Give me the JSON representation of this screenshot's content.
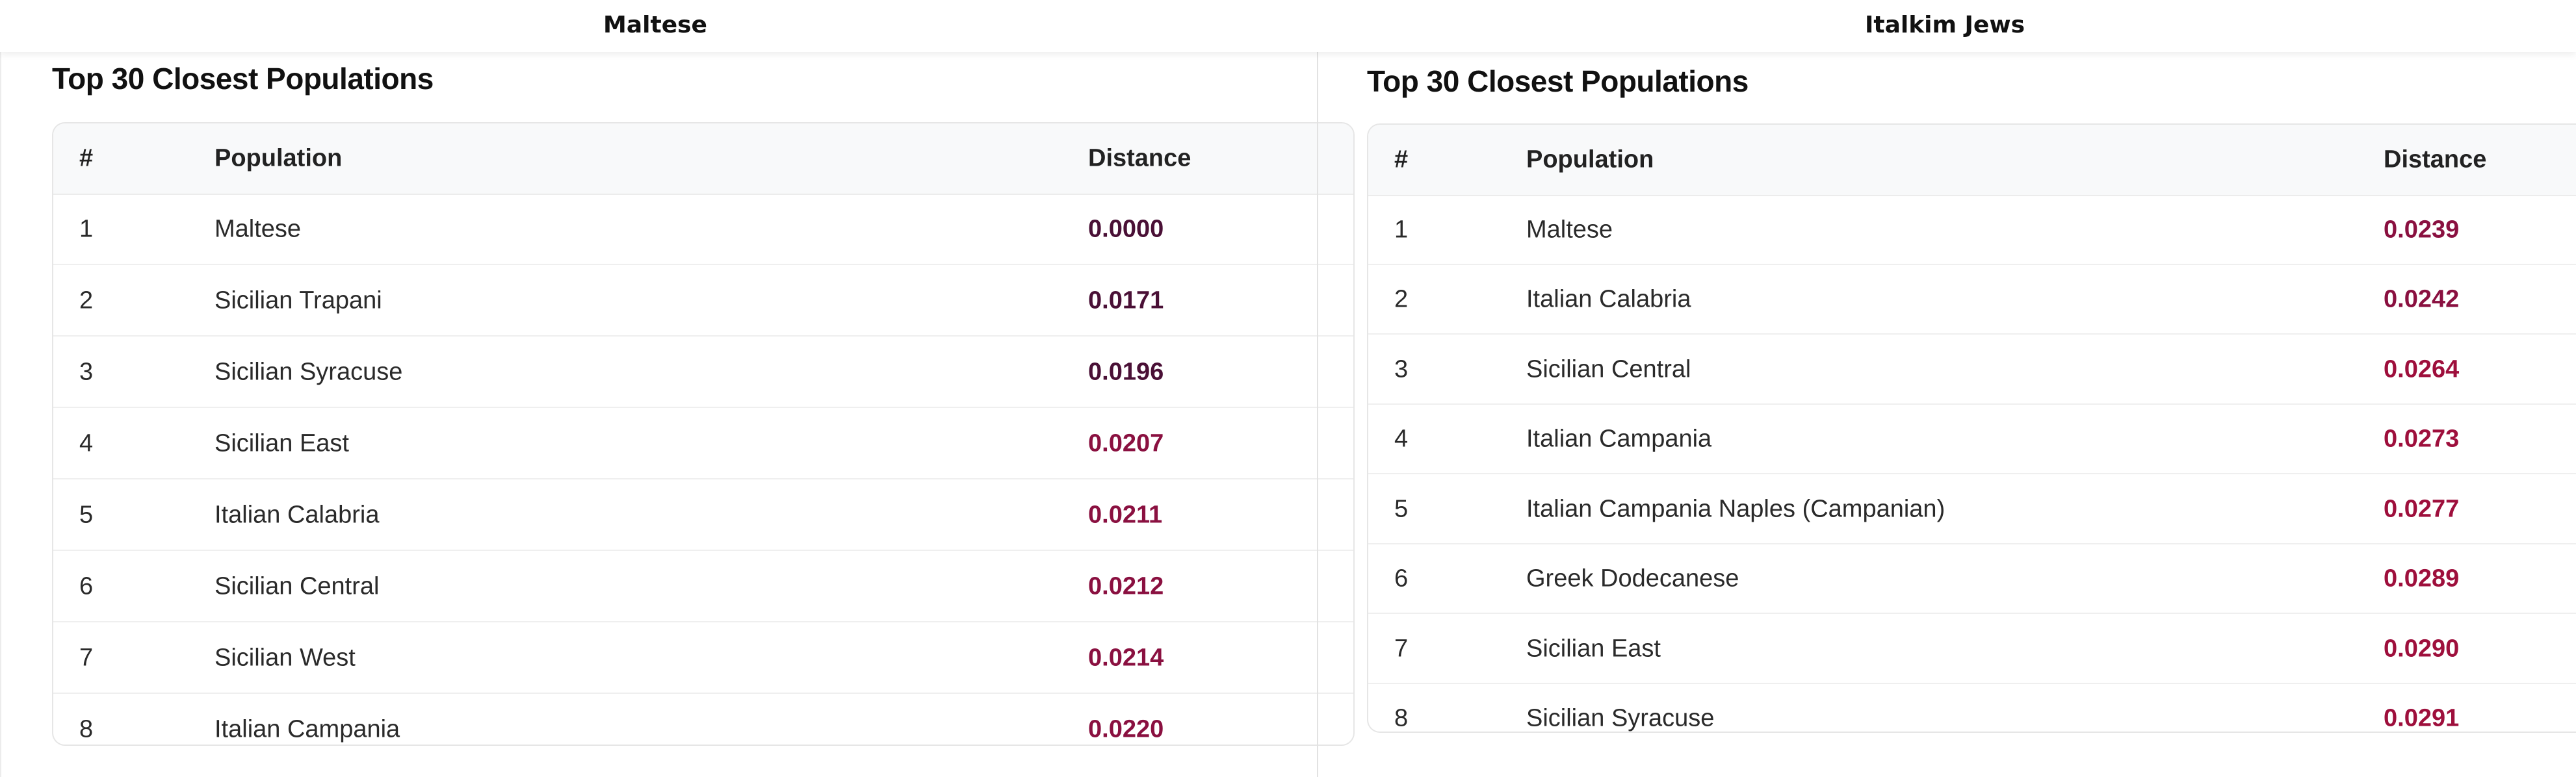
{
  "panels": [
    {
      "name": "Maltese",
      "section_title": "Top 30 Closest Populations",
      "columns": {
        "rank": "#",
        "population": "Population",
        "distance": "Distance"
      },
      "rows": [
        {
          "rank": "1",
          "population": "Maltese",
          "distance": "0.0000"
        },
        {
          "rank": "2",
          "population": "Sicilian Trapani",
          "distance": "0.0171"
        },
        {
          "rank": "3",
          "population": "Sicilian Syracuse",
          "distance": "0.0196"
        },
        {
          "rank": "4",
          "population": "Sicilian East",
          "distance": "0.0207"
        },
        {
          "rank": "5",
          "population": "Italian Calabria",
          "distance": "0.0211"
        },
        {
          "rank": "6",
          "population": "Sicilian Central",
          "distance": "0.0212"
        },
        {
          "rank": "7",
          "population": "Sicilian West",
          "distance": "0.0214"
        },
        {
          "rank": "8",
          "population": "Italian Campania",
          "distance": "0.0220"
        }
      ]
    },
    {
      "name": "Italkim Jews",
      "section_title": "Top 30 Closest Populations",
      "columns": {
        "rank": "#",
        "population": "Population",
        "distance": "Distance"
      },
      "rows": [
        {
          "rank": "1",
          "population": "Maltese",
          "distance": "0.0239"
        },
        {
          "rank": "2",
          "population": "Italian Calabria",
          "distance": "0.0242"
        },
        {
          "rank": "3",
          "population": "Sicilian Central",
          "distance": "0.0264"
        },
        {
          "rank": "4",
          "population": "Italian Campania",
          "distance": "0.0273"
        },
        {
          "rank": "5",
          "population": "Italian Campania Naples (Campanian)",
          "distance": "0.0277"
        },
        {
          "rank": "6",
          "population": "Greek Dodecanese",
          "distance": "0.0289"
        },
        {
          "rank": "7",
          "population": "Sicilian East",
          "distance": "0.0290"
        },
        {
          "rank": "8",
          "population": "Sicilian Syracuse",
          "distance": "0.0291"
        }
      ]
    }
  ],
  "colors": {
    "distance_dark": "#4a1036",
    "distance_mid": "#8a1040",
    "distance_bright": "#9e0f3c"
  }
}
